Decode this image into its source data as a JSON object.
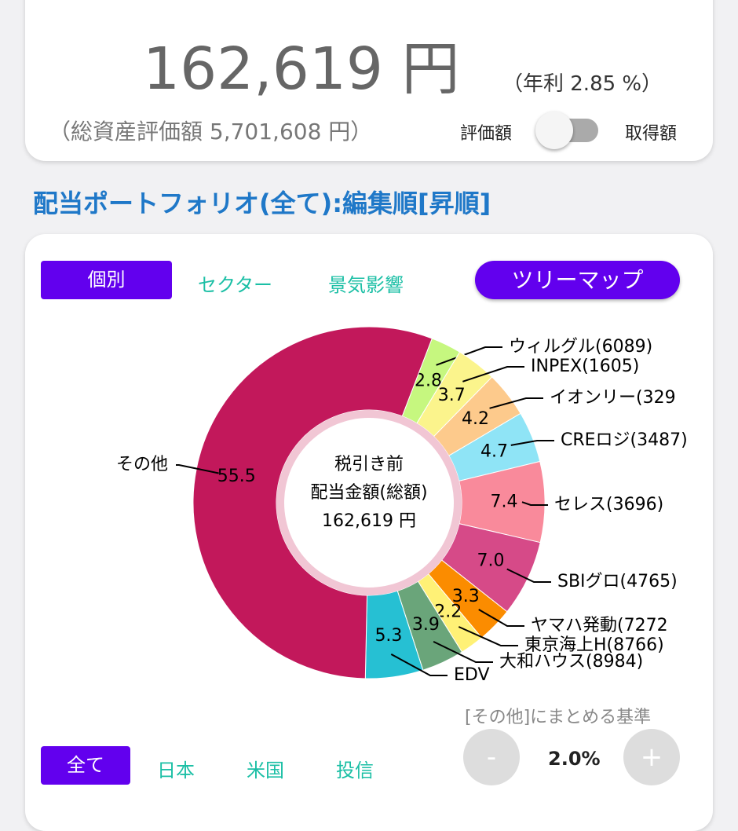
{
  "header": {
    "amount": "162,619 円",
    "yield": "（年利 2.85 %）",
    "total": "（総資産評価額 5,701,608 円）",
    "toggle_left": "評価額",
    "toggle_right": "取得額"
  },
  "section_title": "配当ポートフォリオ(全て):編集順[昇順]",
  "tabs": [
    "個別",
    "セクター",
    "景気影響"
  ],
  "treemap_button": "ツリーマップ",
  "chart_data": {
    "type": "donut",
    "center_text": [
      "税引き前",
      "配当金額(総額)",
      "162,619 円"
    ],
    "categories": [
      "ウィルグル(6089)",
      "INPEX(1605)",
      "イオンリー(329",
      "CREロジ(3487)",
      "セレス(3696)",
      "SBIグロ(4765)",
      "ヤマハ発動(7272",
      "東京海上H(8766)",
      "大和ハウス(8984)",
      "EDV",
      "その他"
    ],
    "values": [
      2.8,
      3.7,
      4.2,
      4.7,
      7.4,
      7.0,
      3.3,
      2.2,
      3.9,
      5.3,
      55.5
    ],
    "value_labels": [
      "2.8",
      "3.7",
      "4.2",
      "4.7",
      "7.4",
      "7.0",
      "3.3",
      "2.2",
      "3.9",
      "5.3",
      "55.5"
    ],
    "colors": [
      "#c6f77f",
      "#fbf48c",
      "#fdca8c",
      "#8fe4f6",
      "#f98a9b",
      "#d64a88",
      "#fb8c00",
      "#fff176",
      "#6aa57a",
      "#26c0d3",
      "#c2185b"
    ]
  },
  "filters": [
    "全て",
    "日本",
    "米国",
    "投信"
  ],
  "threshold": {
    "label": "[その他]にまとめる基準",
    "minus": "-",
    "value": "2.0%",
    "plus": "+"
  }
}
